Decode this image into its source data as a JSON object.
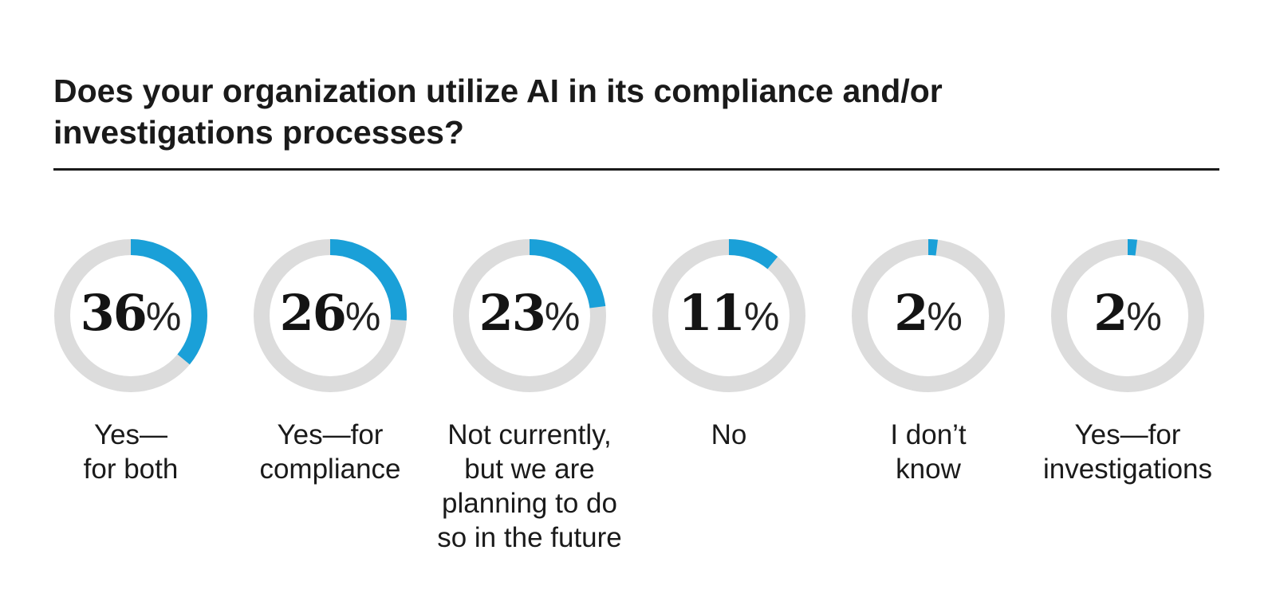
{
  "title": "Does your organization utilize AI in its compliance and/or investigations processes?",
  "colors": {
    "accent": "#1aa0d8",
    "track": "#dcdcdc"
  },
  "chart_data": {
    "type": "donut",
    "title": "Does your organization utilize AI in its compliance and/or investigations processes?",
    "unit": "%",
    "items": [
      {
        "value": 36,
        "display": "36",
        "label": "Yes—\nfor both"
      },
      {
        "value": 26,
        "display": "26",
        "label": "Yes—for\ncompliance"
      },
      {
        "value": 23,
        "display": "23",
        "label": "Not currently,\nbut we are\nplanning to do\nso in the future"
      },
      {
        "value": 11,
        "display": "11",
        "label": "No"
      },
      {
        "value": 2,
        "display": "2",
        "label": "I don’t\nknow"
      },
      {
        "value": 2,
        "display": "2",
        "label": "Yes—for\ninvestigations"
      }
    ]
  }
}
